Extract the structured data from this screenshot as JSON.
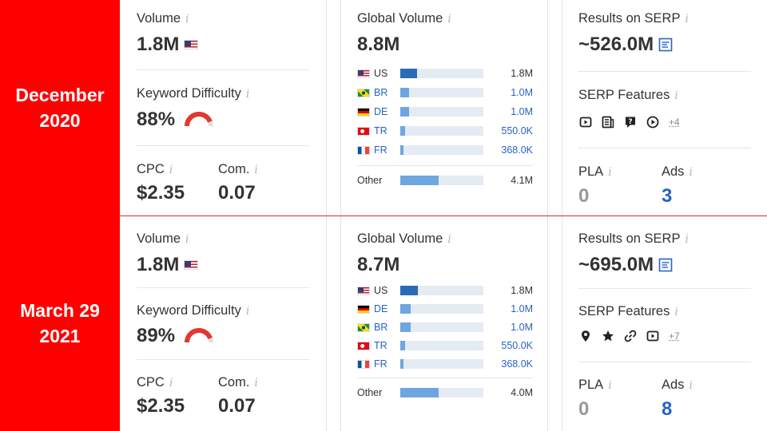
{
  "info_glyph": "i",
  "colors": {
    "date_bg": "#ff0000",
    "bar_dark": "#2a6bb7",
    "bar_light": "#6ea6e0",
    "link_blue": "#2962c4",
    "kd_red": "#e2382f"
  },
  "rows": [
    {
      "date": "December\n2020",
      "volume": {
        "label": "Volume",
        "value": "1.8M",
        "flag": "us-flag-icon"
      },
      "kd": {
        "label": "Keyword Difficulty",
        "value": "88%",
        "percent": 88
      },
      "cpc": {
        "label": "CPC",
        "value": "$2.35"
      },
      "com": {
        "label": "Com.",
        "value": "0.07"
      },
      "global": {
        "label": "Global Volume",
        "value": "8.8M",
        "countries": [
          {
            "code": "US",
            "flag": "us",
            "value": "1.8M",
            "share": 0.2,
            "highlight": false
          },
          {
            "code": "BR",
            "flag": "br",
            "value": "1.0M",
            "share": 0.11,
            "highlight": true
          },
          {
            "code": "DE",
            "flag": "de",
            "value": "1.0M",
            "share": 0.11,
            "highlight": true
          },
          {
            "code": "TR",
            "flag": "tr",
            "value": "550.0K",
            "share": 0.06,
            "highlight": true
          },
          {
            "code": "FR",
            "flag": "fr",
            "value": "368.0K",
            "share": 0.04,
            "highlight": true
          }
        ],
        "other": {
          "label": "Other",
          "value": "4.1M",
          "share": 0.46
        }
      },
      "serp": {
        "label": "Results on SERP",
        "value": "~526.0M"
      },
      "features": {
        "label": "SERP Features",
        "icons": [
          "video-icon",
          "news-icon",
          "faq-icon",
          "play-icon"
        ],
        "more": "+4"
      },
      "pla": {
        "label": "PLA",
        "value": "0"
      },
      "ads": {
        "label": "Ads",
        "value": "3"
      }
    },
    {
      "date": "March 29\n2021",
      "volume": {
        "label": "Volume",
        "value": "1.8M",
        "flag": "us-flag-icon"
      },
      "kd": {
        "label": "Keyword Difficulty",
        "value": "89%",
        "percent": 89
      },
      "cpc": {
        "label": "CPC",
        "value": "$2.35"
      },
      "com": {
        "label": "Com.",
        "value": "0.07"
      },
      "global": {
        "label": "Global Volume",
        "value": "8.7M",
        "countries": [
          {
            "code": "US",
            "flag": "us",
            "value": "1.8M",
            "share": 0.21,
            "highlight": false
          },
          {
            "code": "DE",
            "flag": "de",
            "value": "1.0M",
            "share": 0.12,
            "highlight": true
          },
          {
            "code": "BR",
            "flag": "br",
            "value": "1.0M",
            "share": 0.12,
            "highlight": true
          },
          {
            "code": "TR",
            "flag": "tr",
            "value": "550.0K",
            "share": 0.06,
            "highlight": true
          },
          {
            "code": "FR",
            "flag": "fr",
            "value": "368.0K",
            "share": 0.04,
            "highlight": true
          }
        ],
        "other": {
          "label": "Other",
          "value": "4.0M",
          "share": 0.46
        }
      },
      "serp": {
        "label": "Results on SERP",
        "value": "~695.0M"
      },
      "features": {
        "label": "SERP Features",
        "icons": [
          "pin-icon",
          "star-icon",
          "link-icon",
          "video-icon"
        ],
        "more": "+7"
      },
      "pla": {
        "label": "PLA",
        "value": "0"
      },
      "ads": {
        "label": "Ads",
        "value": "8"
      }
    }
  ]
}
